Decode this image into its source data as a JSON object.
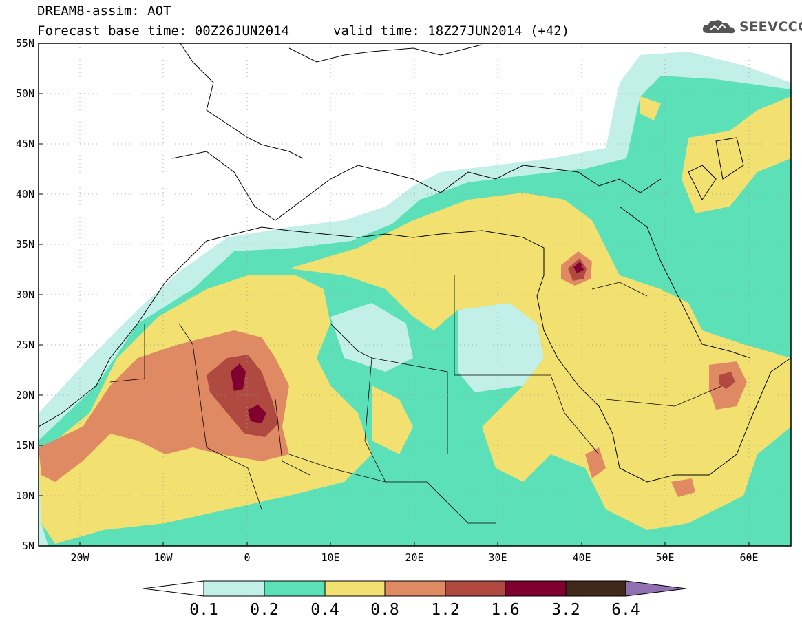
{
  "header": {
    "title_line1": "DREAM8-assim: AOT",
    "title_line2": "Forecast base time: 00Z26JUN2014",
    "valid_time": "valid time: 18Z27JUN2014 (+42)",
    "logo_text": "SEEVCCC"
  },
  "map": {
    "variable": "AOT",
    "lat_labels": [
      "55N",
      "50N",
      "45N",
      "40N",
      "35N",
      "30N",
      "25N",
      "20N",
      "15N",
      "10N",
      "5N"
    ],
    "lon_labels": [
      "20W",
      "10W",
      "0",
      "10E",
      "20E",
      "30E",
      "40E",
      "50E",
      "60E"
    ],
    "colors": {
      "lt_0.1": "#ffffff",
      "0.1-0.2": "#c2f0e8",
      "0.2-0.4": "#5ce0b8",
      "0.4-0.8": "#f2e070",
      "0.8-1.2": "#e08a64",
      "1.2-1.6": "#b04a40",
      "1.6-3.2": "#800030",
      "3.2-6.4": "#40281a",
      "gt_6.4": "#9070b0"
    }
  },
  "colorbar": {
    "labels": [
      "0.1",
      "0.2",
      "0.4",
      "0.8",
      "1.2",
      "1.6",
      "3.2",
      "6.4"
    ],
    "colors": [
      "#ffffff",
      "#c2f0e8",
      "#5ce0b8",
      "#f2e070",
      "#e08a64",
      "#b04a40",
      "#800030",
      "#40281a",
      "#9070b0"
    ]
  }
}
